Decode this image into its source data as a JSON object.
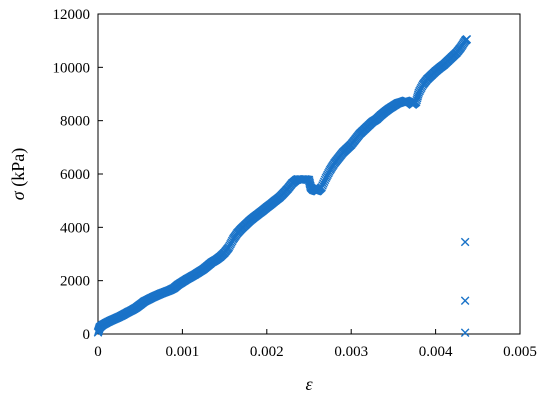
{
  "chart_data": {
    "type": "scatter",
    "marker": "x",
    "marker_color": "#1a73c8",
    "xlabel": "ε",
    "ylabel_symbol": "σ",
    "ylabel_unit": " (kPa)",
    "xlim": [
      0,
      0.005
    ],
    "ylim": [
      0,
      12000
    ],
    "x_ticks": [
      0,
      0.001,
      0.002,
      0.003,
      0.004,
      0.005
    ],
    "x_tick_labels": [
      "0",
      "0.001",
      "0.002",
      "0.003",
      "0.004",
      "0.005"
    ],
    "y_ticks": [
      0,
      2000,
      4000,
      6000,
      8000,
      10000,
      12000
    ],
    "y_tick_labels": [
      "0",
      "2000",
      "4000",
      "6000",
      "8000",
      "10000",
      "12000"
    ],
    "grid": false,
    "series": [
      {
        "values": [
          [
            0.0,
            60
          ],
          [
            2e-05,
            250
          ],
          [
            5e-05,
            330
          ],
          [
            0.0001,
            420
          ],
          [
            0.00015,
            500
          ],
          [
            0.0002,
            570
          ],
          [
            0.00025,
            640
          ],
          [
            0.0003,
            720
          ],
          [
            0.00035,
            810
          ],
          [
            0.0004,
            890
          ],
          [
            0.00045,
            980
          ],
          [
            0.0005,
            1100
          ],
          [
            0.00055,
            1220
          ],
          [
            0.0006,
            1300
          ],
          [
            0.00065,
            1380
          ],
          [
            0.0007,
            1450
          ],
          [
            0.00075,
            1520
          ],
          [
            0.0008,
            1580
          ],
          [
            0.00085,
            1640
          ],
          [
            0.0009,
            1720
          ],
          [
            0.00095,
            1850
          ],
          [
            0.001,
            1950
          ],
          [
            0.00105,
            2050
          ],
          [
            0.0011,
            2140
          ],
          [
            0.00115,
            2230
          ],
          [
            0.0012,
            2330
          ],
          [
            0.00125,
            2430
          ],
          [
            0.0013,
            2560
          ],
          [
            0.00135,
            2690
          ],
          [
            0.0014,
            2780
          ],
          [
            0.00145,
            2900
          ],
          [
            0.0015,
            3050
          ],
          [
            0.00155,
            3250
          ],
          [
            0.0016,
            3550
          ],
          [
            0.00165,
            3780
          ],
          [
            0.0017,
            3950
          ],
          [
            0.00175,
            4100
          ],
          [
            0.0018,
            4250
          ],
          [
            0.00185,
            4380
          ],
          [
            0.0019,
            4500
          ],
          [
            0.00195,
            4620
          ],
          [
            0.002,
            4750
          ],
          [
            0.00205,
            4870
          ],
          [
            0.0021,
            5000
          ],
          [
            0.00215,
            5120
          ],
          [
            0.0022,
            5280
          ],
          [
            0.00225,
            5450
          ],
          [
            0.0023,
            5650
          ],
          [
            0.00235,
            5780
          ],
          [
            0.00237,
            5800
          ],
          [
            0.00245,
            5800
          ],
          [
            0.0025,
            5780
          ],
          [
            0.00252,
            5500
          ],
          [
            0.00255,
            5400
          ],
          [
            0.0026,
            5350
          ],
          [
            0.00265,
            5500
          ],
          [
            0.0027,
            5850
          ],
          [
            0.00275,
            6150
          ],
          [
            0.0028,
            6400
          ],
          [
            0.00285,
            6600
          ],
          [
            0.0029,
            6800
          ],
          [
            0.00295,
            6950
          ],
          [
            0.003,
            7100
          ],
          [
            0.00305,
            7300
          ],
          [
            0.0031,
            7500
          ],
          [
            0.00315,
            7650
          ],
          [
            0.0032,
            7800
          ],
          [
            0.00325,
            7950
          ],
          [
            0.0033,
            8050
          ],
          [
            0.00335,
            8200
          ],
          [
            0.0034,
            8330
          ],
          [
            0.00345,
            8450
          ],
          [
            0.0035,
            8550
          ],
          [
            0.00355,
            8650
          ],
          [
            0.0036,
            8700
          ],
          [
            0.00365,
            8750
          ],
          [
            0.0037,
            8680
          ],
          [
            0.00373,
            8600
          ],
          [
            0.00377,
            8700
          ],
          [
            0.0038,
            9050
          ],
          [
            0.00385,
            9350
          ],
          [
            0.0039,
            9550
          ],
          [
            0.00395,
            9700
          ],
          [
            0.004,
            9850
          ],
          [
            0.00405,
            9980
          ],
          [
            0.0041,
            10100
          ],
          [
            0.00415,
            10250
          ],
          [
            0.0042,
            10400
          ],
          [
            0.00425,
            10550
          ],
          [
            0.0043,
            10750
          ],
          [
            0.00435,
            11000
          ],
          [
            0.00437,
            11050
          ],
          [
            0.00435,
            3450
          ],
          [
            0.00435,
            1250
          ],
          [
            0.00435,
            50
          ]
        ]
      }
    ]
  }
}
